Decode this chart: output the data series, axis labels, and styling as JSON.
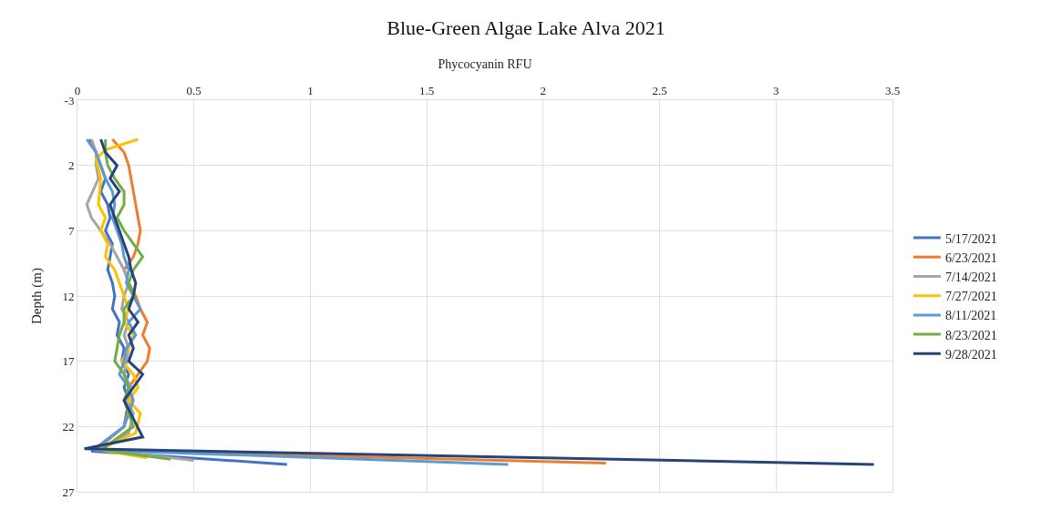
{
  "chart_data": {
    "type": "line",
    "title": "Blue-Green Algae Lake Alva 2021",
    "xlabel": "Phycocyanin RFU",
    "ylabel": "Depth (m)",
    "xlim": [
      0,
      3.5
    ],
    "xticks": [
      0,
      0.5,
      1,
      1.5,
      2,
      2.5,
      3,
      3.5
    ],
    "ylim": [
      27,
      -3
    ],
    "yticks": [
      -3,
      2,
      7,
      12,
      17,
      22,
      27
    ],
    "grid": true,
    "legend": "right",
    "marker": "none",
    "line_style": "solid",
    "series": [
      {
        "name": "5/17/2021",
        "color": "#4472c4",
        "x": [
          0.05,
          0.08,
          0.1,
          0.12,
          0.1,
          0.13,
          0.14,
          0.12,
          0.15,
          0.14,
          0.13,
          0.15,
          0.16,
          0.15,
          0.18,
          0.17,
          0.2,
          0.19,
          0.22,
          0.2,
          0.22,
          0.2,
          0.06,
          0.9
        ],
        "values": [
          0,
          1,
          2,
          3,
          4,
          5,
          6,
          7,
          8,
          9,
          10,
          11,
          12,
          13,
          14,
          15,
          16,
          17,
          18,
          19,
          20,
          22,
          23.9,
          24.9
        ]
      },
      {
        "name": "6/23/2021",
        "color": "#ed7d31",
        "x": [
          0.15,
          0.2,
          0.22,
          0.23,
          0.24,
          0.25,
          0.26,
          0.27,
          0.26,
          0.24,
          0.2,
          0.22,
          0.25,
          0.27,
          0.3,
          0.28,
          0.31,
          0.3,
          0.26,
          0.22,
          0.23,
          0.2,
          0.08,
          2.27
        ],
        "values": [
          0,
          1,
          2,
          3,
          4,
          5,
          6,
          7,
          8,
          9,
          10,
          11,
          12,
          13,
          14,
          15,
          16,
          17,
          18,
          19,
          20,
          22,
          23.8,
          24.8
        ]
      },
      {
        "name": "7/14/2021",
        "color": "#a5a5a5",
        "x": [
          0.06,
          0.08,
          0.08,
          0.09,
          0.04,
          0.06,
          0.1,
          0.14,
          0.17,
          0.2,
          0.22,
          0.2,
          0.19,
          0.22,
          0.2,
          0.22,
          0.21,
          0.2,
          0.23,
          0.21,
          0.24,
          0.22,
          0.1,
          0.5
        ],
        "values": [
          0,
          1,
          2,
          3,
          5,
          6,
          7,
          8,
          9,
          10,
          11,
          12,
          13,
          14,
          15,
          16,
          17,
          18,
          19,
          20,
          21,
          22.5,
          23.8,
          24.6
        ]
      },
      {
        "name": "7/27/2021",
        "color": "#ffc000",
        "x": [
          0.26,
          0.12,
          0.08,
          0.1,
          0.09,
          0.12,
          0.1,
          0.13,
          0.12,
          0.16,
          0.18,
          0.2,
          0.22,
          0.2,
          0.24,
          0.22,
          0.19,
          0.24,
          0.26,
          0.22,
          0.27,
          0.25,
          0.09,
          0.3
        ],
        "values": [
          0,
          0.8,
          1.5,
          3,
          5,
          6,
          7,
          8,
          9,
          10,
          11,
          12,
          13,
          14,
          15,
          16,
          17,
          18,
          19,
          20,
          21,
          22.5,
          23.8,
          24.4
        ]
      },
      {
        "name": "8/11/2021",
        "color": "#5b9bd5",
        "x": [
          0.04,
          0.08,
          0.1,
          0.12,
          0.15,
          0.16,
          0.15,
          0.17,
          0.19,
          0.2,
          0.22,
          0.21,
          0.24,
          0.27,
          0.22,
          0.25,
          0.21,
          0.2,
          0.18,
          0.22,
          0.24,
          0.2,
          0.07,
          1.85
        ],
        "values": [
          0,
          1,
          2,
          3,
          4,
          5,
          6,
          7,
          8,
          9,
          10,
          11,
          12,
          13,
          14,
          15,
          16,
          17,
          18,
          19,
          20,
          22,
          23.8,
          24.9
        ]
      },
      {
        "name": "8/23/2021",
        "color": "#70ad47",
        "x": [
          0.12,
          0.12,
          0.13,
          0.16,
          0.2,
          0.2,
          0.17,
          0.2,
          0.24,
          0.28,
          0.24,
          0.22,
          0.24,
          0.2,
          0.2,
          0.18,
          0.17,
          0.16,
          0.2,
          0.22,
          0.2,
          0.24,
          0.1,
          0.4
        ],
        "values": [
          0,
          1,
          2,
          3,
          4,
          5,
          6,
          7,
          8,
          9,
          10,
          11,
          12,
          13,
          14,
          15,
          16,
          17,
          18,
          19,
          20,
          22,
          23.8,
          24.5
        ]
      },
      {
        "name": "9/28/2021",
        "color": "#264478",
        "x": [
          0.1,
          0.12,
          0.17,
          0.14,
          0.18,
          0.14,
          0.16,
          0.18,
          0.2,
          0.22,
          0.23,
          0.25,
          0.24,
          0.22,
          0.26,
          0.22,
          0.24,
          0.22,
          0.28,
          0.24,
          0.2,
          0.28,
          0.03,
          3.42
        ],
        "values": [
          0,
          1,
          2,
          3,
          4,
          5,
          6,
          7,
          8,
          9,
          10,
          11,
          12,
          13,
          14,
          15,
          16,
          17,
          18,
          19,
          20,
          22.8,
          23.7,
          24.9
        ]
      }
    ]
  }
}
